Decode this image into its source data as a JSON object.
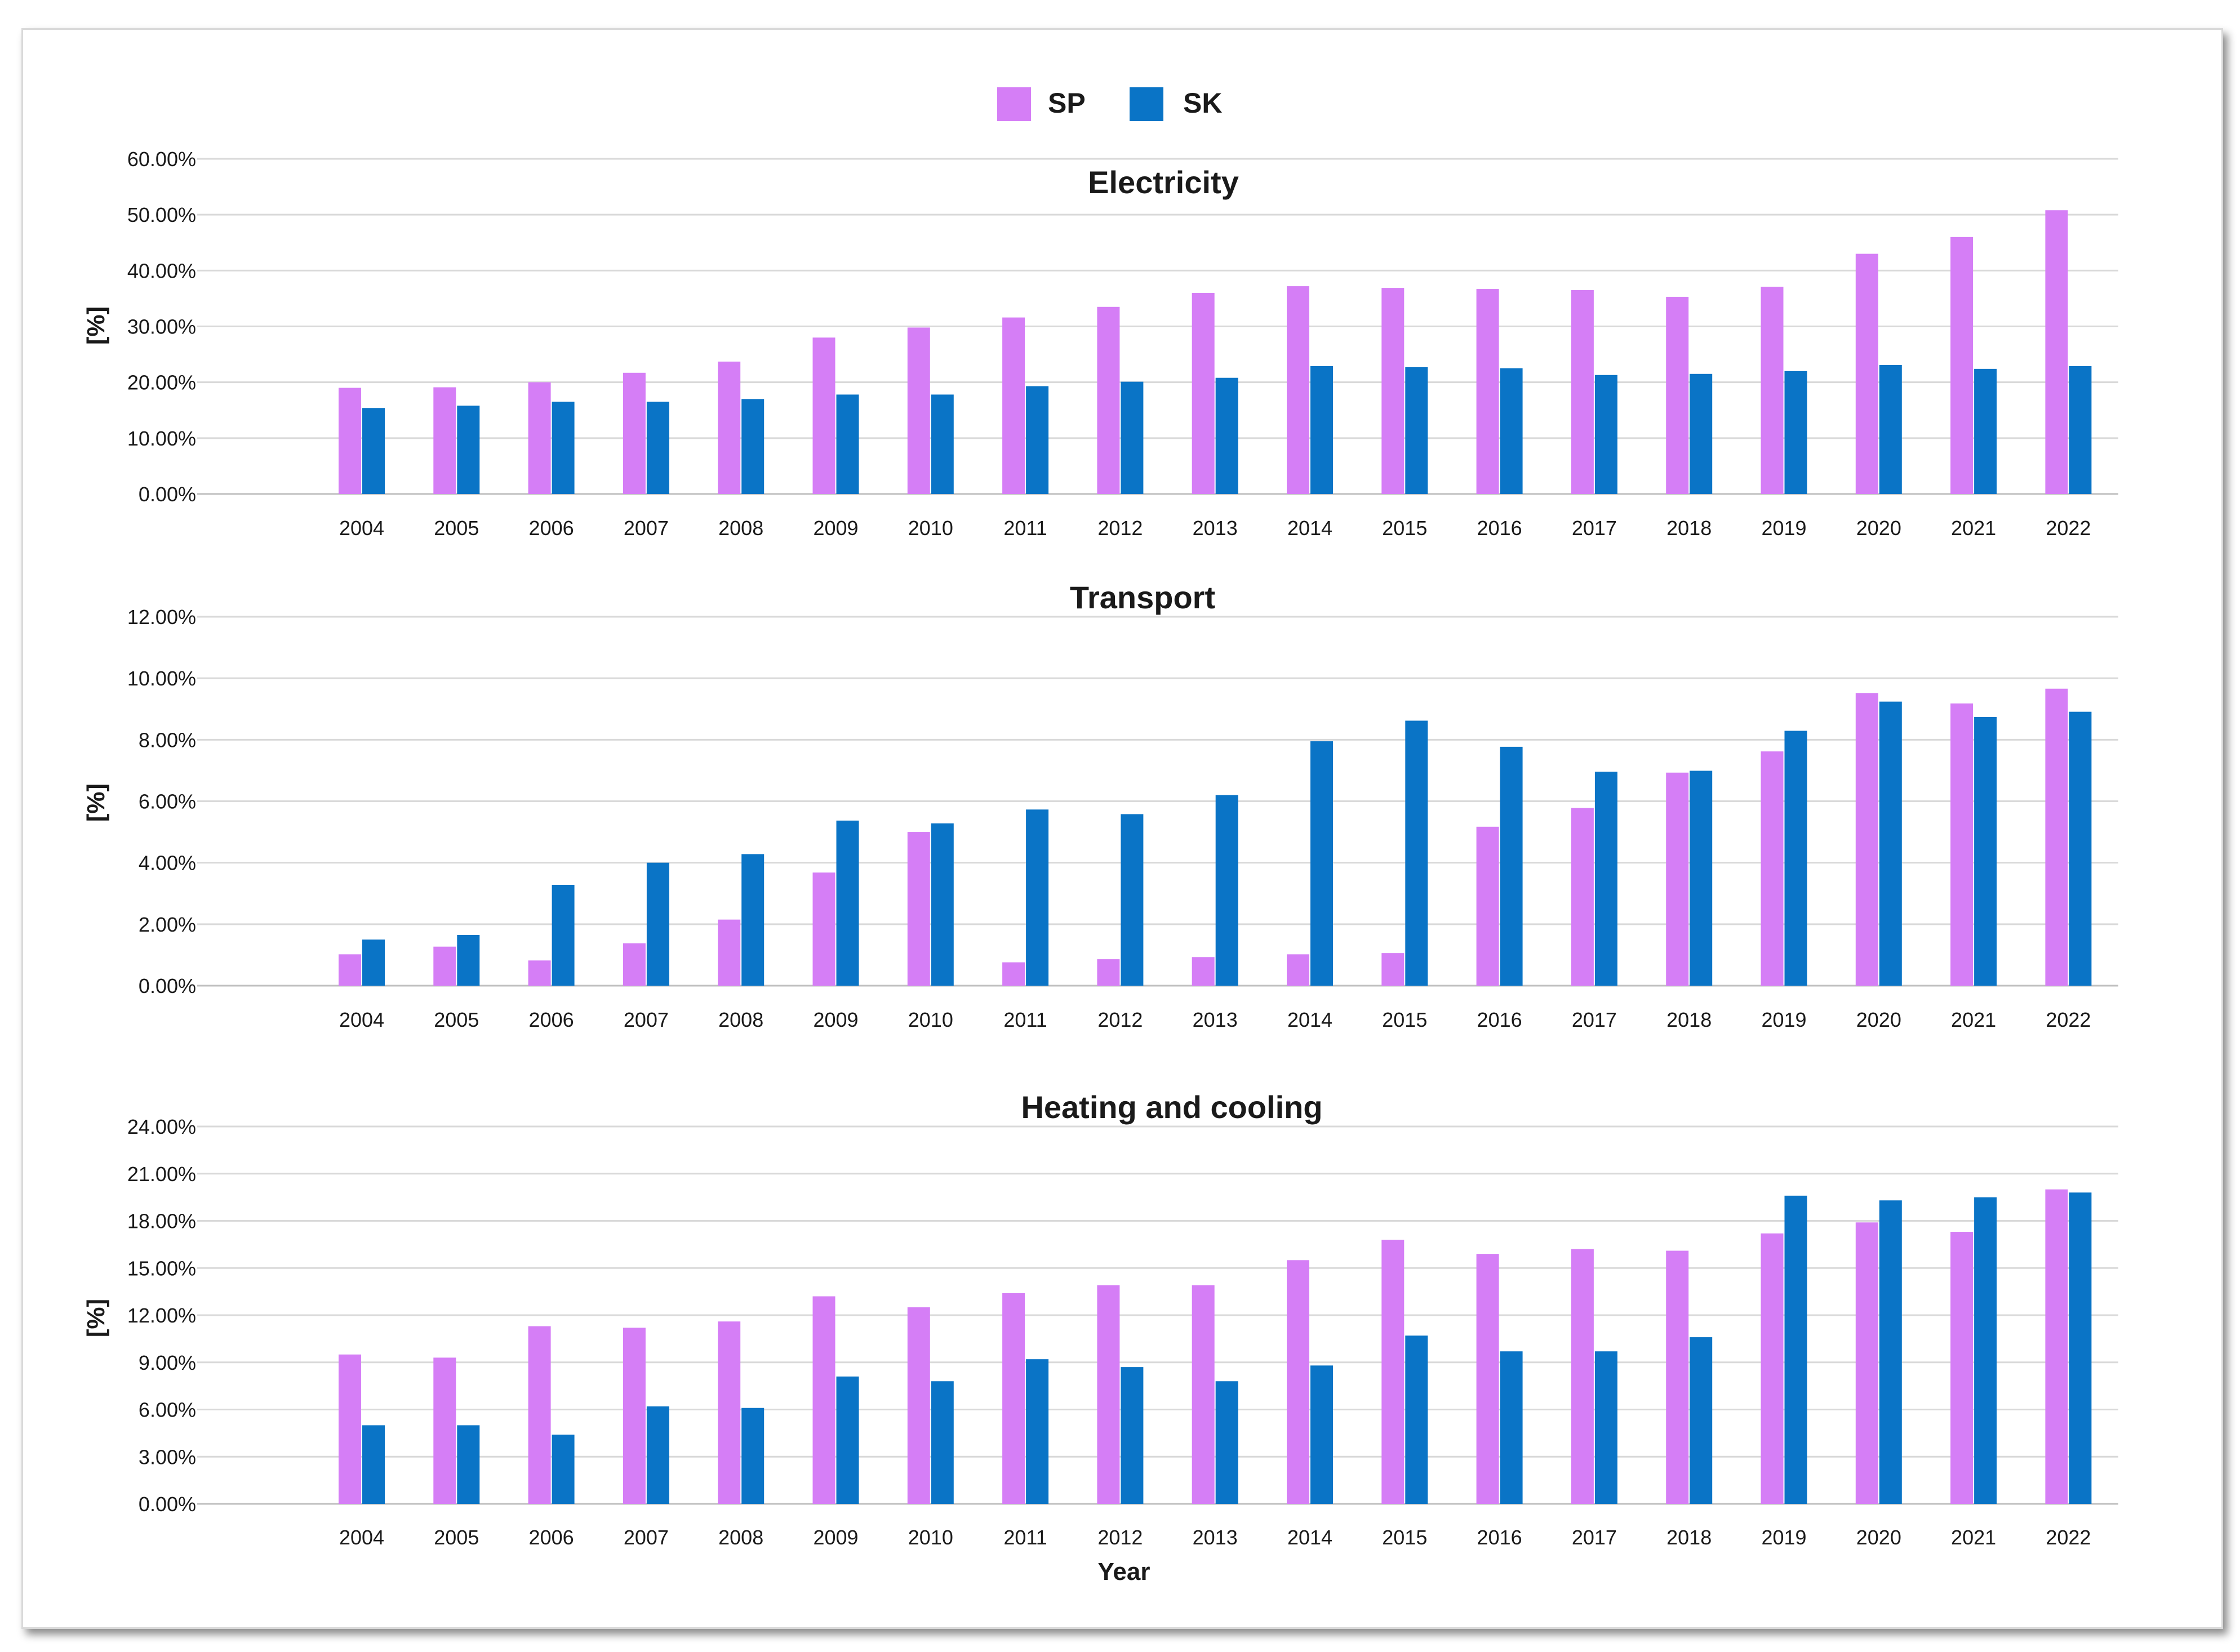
{
  "colors": {
    "SP": "#d57ef6",
    "SK": "#0a74c6"
  },
  "legend": [
    {
      "name": "SP",
      "color": "#d57ef6"
    },
    {
      "name": "SK",
      "color": "#0a74c6"
    }
  ],
  "xlabel": "Year",
  "chart_data": [
    {
      "type": "bar",
      "title": "Electricity",
      "ylabel": "[%]",
      "xlabel": "",
      "ylim": [
        0,
        60
      ],
      "yticks": [
        "0.00%",
        "10.00%",
        "20.00%",
        "30.00%",
        "40.00%",
        "50.00%",
        "60.00%"
      ],
      "categories": [
        "2004",
        "2005",
        "2006",
        "2007",
        "2008",
        "2009",
        "2010",
        "2011",
        "2012",
        "2013",
        "2014",
        "2015",
        "2016",
        "2017",
        "2018",
        "2019",
        "2020",
        "2021",
        "2022"
      ],
      "series": [
        {
          "name": "SP",
          "values": [
            19.0,
            19.1,
            20.0,
            21.7,
            23.7,
            28.0,
            29.8,
            31.6,
            33.5,
            36.0,
            37.2,
            36.9,
            36.7,
            36.5,
            35.3,
            37.1,
            43.0,
            46.0,
            50.8
          ]
        },
        {
          "name": "SK",
          "values": [
            15.4,
            15.8,
            16.5,
            16.5,
            17.0,
            17.8,
            17.8,
            19.3,
            20.1,
            20.8,
            22.9,
            22.7,
            22.5,
            21.3,
            21.5,
            22.0,
            23.1,
            22.4,
            22.9
          ]
        }
      ]
    },
    {
      "type": "bar",
      "title": "Transport",
      "ylabel": "[%]",
      "xlabel": "",
      "ylim": [
        0,
        12
      ],
      "yticks": [
        "0.00%",
        "2.00%",
        "4.00%",
        "6.00%",
        "8.00%",
        "10.00%",
        "12.00%"
      ],
      "categories": [
        "2004",
        "2005",
        "2006",
        "2007",
        "2008",
        "2009",
        "2010",
        "2011",
        "2012",
        "2013",
        "2014",
        "2015",
        "2016",
        "2017",
        "2018",
        "2019",
        "2020",
        "2021",
        "2022"
      ],
      "series": [
        {
          "name": "SP",
          "values": [
            1.02,
            1.27,
            0.82,
            1.38,
            2.15,
            3.68,
            5.0,
            0.76,
            0.86,
            0.93,
            1.02,
            1.06,
            5.17,
            5.78,
            6.93,
            7.62,
            9.52,
            9.18,
            9.66
          ]
        },
        {
          "name": "SK",
          "values": [
            1.5,
            1.65,
            3.28,
            4.0,
            4.28,
            5.37,
            5.28,
            5.73,
            5.58,
            6.2,
            7.95,
            8.62,
            7.77,
            6.96,
            6.99,
            8.29,
            9.24,
            8.74,
            8.91
          ]
        }
      ]
    },
    {
      "type": "bar",
      "title": "Heating and cooling",
      "ylabel": "[%]",
      "xlabel": "Year",
      "ylim": [
        0,
        24
      ],
      "yticks": [
        "0.00%",
        "3.00%",
        "6.00%",
        "9.00%",
        "12.00%",
        "15.00%",
        "18.00%",
        "21.00%",
        "24.00%"
      ],
      "categories": [
        "2004",
        "2005",
        "2006",
        "2007",
        "2008",
        "2009",
        "2010",
        "2011",
        "2012",
        "2013",
        "2014",
        "2015",
        "2016",
        "2017",
        "2018",
        "2019",
        "2020",
        "2021",
        "2022"
      ],
      "series": [
        {
          "name": "SP",
          "values": [
            9.5,
            9.3,
            11.3,
            11.2,
            11.6,
            13.2,
            12.5,
            13.4,
            13.9,
            13.9,
            15.5,
            16.8,
            15.9,
            16.2,
            16.1,
            17.2,
            17.9,
            17.3,
            20.0
          ]
        },
        {
          "name": "SK",
          "values": [
            5.0,
            5.0,
            4.4,
            6.2,
            6.1,
            8.1,
            7.8,
            9.2,
            8.7,
            7.8,
            8.8,
            10.7,
            9.7,
            9.7,
            10.6,
            19.6,
            19.3,
            19.5,
            19.8
          ]
        }
      ]
    }
  ]
}
